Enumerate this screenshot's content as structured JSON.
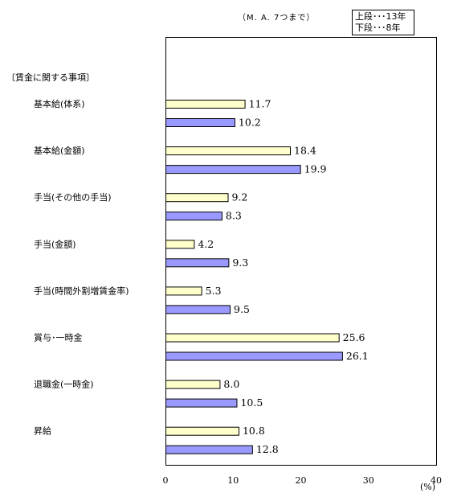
{
  "note": "（M. A. 7つまで）",
  "legend": {
    "line1": "上段･･･13年",
    "line2": "下段･･･8年"
  },
  "section_label": "〔賃金に関する事項〕",
  "colors": {
    "series_13": "#ffffcc",
    "series_8": "#9999ff",
    "frame": "#000000"
  },
  "chart_data": {
    "type": "bar",
    "orientation": "horizontal",
    "categories": [
      "基本給(体系)",
      "基本給(金額)",
      "手当(その他の手当)",
      "手当(金額)",
      "手当(時間外割増賃金率)",
      "賞与･一時金",
      "退職金(一時金)",
      "昇給"
    ],
    "series": [
      {
        "values": [
          11.7,
          18.4,
          9.2,
          4.2,
          5.3,
          25.6,
          8.0,
          10.8
        ],
        "value_labels": [
          "11.7",
          "18.4",
          "9.2",
          "4.2",
          "5.3",
          "25.6",
          "8.0",
          "10.8"
        ]
      },
      {
        "values": [
          10.2,
          19.9,
          8.3,
          9.3,
          9.5,
          26.1,
          10.5,
          12.8
        ],
        "value_labels": [
          "10.2",
          "19.9",
          "8.3",
          "9.3",
          "9.5",
          "26.1",
          "10.5",
          "12.8"
        ]
      }
    ],
    "xlim": [
      0,
      40
    ],
    "xticks": [
      0,
      10,
      20,
      30,
      40
    ],
    "xtick_labels": [
      "0",
      "10",
      "20",
      "30",
      "40"
    ],
    "xlabel": "(%)",
    "grid": false
  }
}
